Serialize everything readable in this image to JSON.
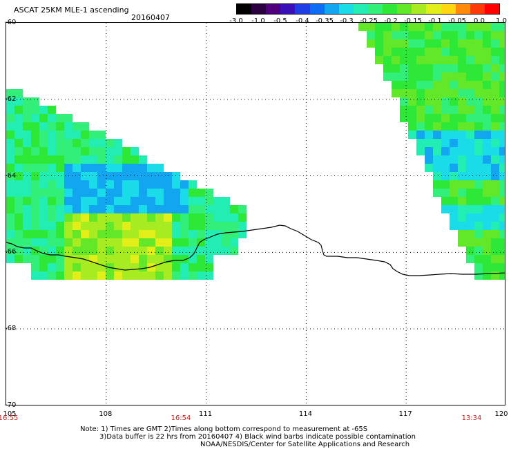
{
  "header": {
    "product": "ASCAT 25KM MLE-1 ascending",
    "date": "20160407"
  },
  "colorbar": {
    "labels": [
      "-3.0",
      "-1.0",
      "-0.5",
      "-0.4",
      "-0.35",
      "-0.3",
      "-0.25",
      "-0.2",
      "-0.15",
      "-0.1",
      "-0.05",
      "0.0",
      "1.0"
    ],
    "colors": [
      "#000000",
      "#2a0040",
      "#50007a",
      "#3a0fb8",
      "#1e3fe6",
      "#0f6cf4",
      "#12a6f0",
      "#19dce8",
      "#22eeb4",
      "#32ef7a",
      "#2ee838",
      "#62e828",
      "#a6ec20",
      "#e2ee18",
      "#ffd70e",
      "#ff8a0a",
      "#ff3a08",
      "#ff0000"
    ]
  },
  "map": {
    "lat_labels": [
      "-60",
      "-62",
      "-64",
      "-66",
      "-68",
      "-70"
    ],
    "lon_labels": [
      "105",
      "108",
      "111",
      "114",
      "117",
      "120"
    ],
    "pass_times": [
      "16:55",
      "16:54",
      "13:34"
    ],
    "lon_range": [
      105,
      120
    ],
    "lat_range": [
      -60,
      -70
    ]
  },
  "footer": {
    "note_line1": "Note: 1) Times are GMT 2)Times along bottom correspond to measurement at -65S",
    "note_line2": "3)Data buffer is 22 hrs from 20160407 4) Black wind barbs indicate possible contamination",
    "credit": "NOAA/NESDIS/Center for Satellite Applications and Research"
  }
}
